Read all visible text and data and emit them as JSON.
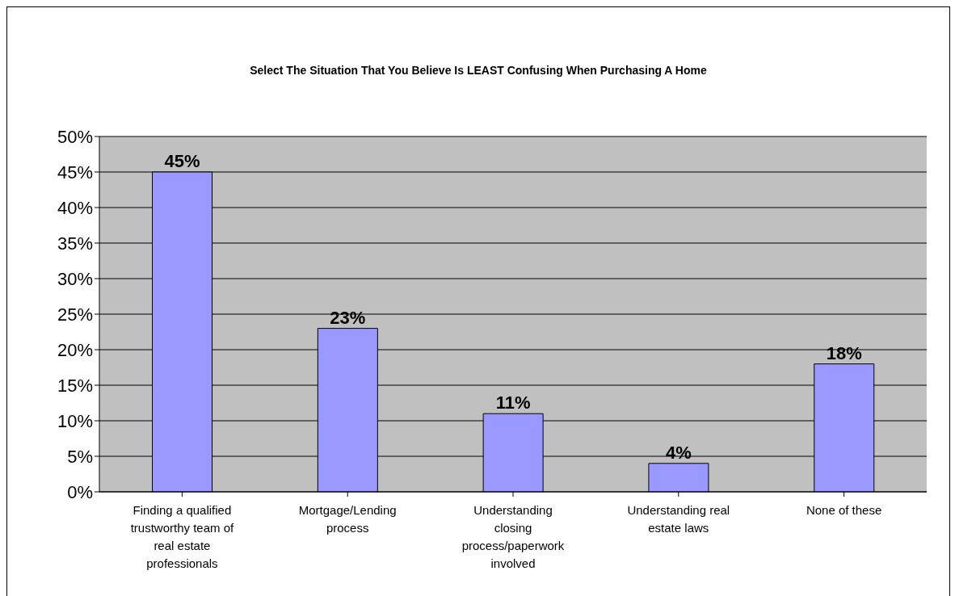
{
  "chart_data": {
    "type": "bar",
    "title": "Select The Situation That You Believe Is LEAST Confusing When Purchasing A Home",
    "categories": [
      "Finding a qualified trustworthy team of real estate professionals",
      "Mortgage/Lending process",
      "Understanding closing process/paperwork involved",
      "Understanding real estate laws",
      "None of these"
    ],
    "values": [
      45,
      23,
      11,
      4,
      18
    ],
    "value_labels": [
      "45%",
      "23%",
      "11%",
      "4%",
      "18%"
    ],
    "color": "#9999ff",
    "ylim": [
      0,
      50
    ],
    "yticks": [
      {
        "value": 0,
        "label": "0%"
      },
      {
        "value": 5,
        "label": "5%"
      },
      {
        "value": 10,
        "label": "10%"
      },
      {
        "value": 15,
        "label": "15%"
      },
      {
        "value": 20,
        "label": "20%"
      },
      {
        "value": 25,
        "label": "25%"
      },
      {
        "value": 30,
        "label": "30%"
      },
      {
        "value": 35,
        "label": "35%"
      },
      {
        "value": 40,
        "label": "40%"
      },
      {
        "value": 45,
        "label": "45%"
      },
      {
        "value": 50,
        "label": "50%"
      }
    ],
    "grid": "y"
  }
}
